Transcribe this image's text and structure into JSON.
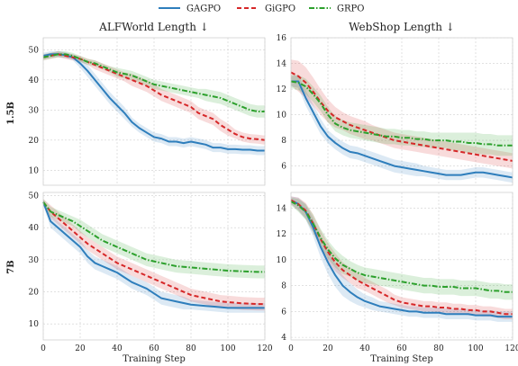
{
  "chart_data": {
    "type": "line",
    "legend": {
      "placement": "top-center",
      "entries": [
        {
          "name": "GAGPO",
          "color": "#2e7ebc",
          "dash": "solid"
        },
        {
          "name": "GiGPO",
          "color": "#d62728",
          "dash": "dashed"
        },
        {
          "name": "GRPO",
          "color": "#2ca02c",
          "dash": "dashdot"
        }
      ]
    },
    "column_titles": [
      "ALFWorld Length ↓",
      "WebShop Length ↓"
    ],
    "row_labels": [
      "1.5B",
      "7B"
    ],
    "xlabel": "Training Step",
    "grid": true,
    "x": [
      0,
      4,
      8,
      12,
      16,
      20,
      24,
      28,
      32,
      36,
      40,
      44,
      48,
      52,
      56,
      60,
      64,
      68,
      72,
      76,
      80,
      84,
      88,
      92,
      96,
      100,
      104,
      108,
      112,
      116,
      120
    ],
    "panels": [
      {
        "row": "1.5B",
        "col": "ALFWorld Length ↓",
        "xlim": [
          0,
          120
        ],
        "ylim": [
          5,
          54
        ],
        "xticks": [],
        "yticks": [
          10,
          20,
          30,
          40,
          50
        ],
        "series": [
          {
            "name": "GAGPO",
            "values": [
              48,
              48.5,
              48.6,
              48.2,
              47.5,
              45.5,
              43,
              40,
              37,
              34,
              31.5,
              29,
              26,
              24,
              22.5,
              21,
              20.5,
              19.5,
              19.5,
              19,
              19.5,
              19,
              18.5,
              17.5,
              17.5,
              17,
              17,
              16.8,
              16.8,
              16.5,
              16.5
            ],
            "band": [
              1,
              1,
              1,
              1,
              1,
              1.5,
              2,
              2,
              2,
              2,
              2,
              2,
              1.5,
              1.5,
              1.5,
              1.5,
              1.5,
              1.5,
              1.5,
              1.5,
              1.5,
              1.5,
              1.5,
              1.5,
              1.5,
              1.5,
              1.5,
              1.5,
              1.5,
              1.5,
              1.5
            ]
          },
          {
            "name": "GiGPO",
            "values": [
              47.5,
              48,
              48.5,
              48,
              47.5,
              47,
              46,
              45,
              44,
              43,
              42,
              41,
              40,
              39,
              38,
              36.5,
              35,
              34,
              33,
              32,
              31,
              29,
              28,
              27,
              25,
              23.5,
              22,
              21,
              20.5,
              20.3,
              20
            ],
            "band": [
              1,
              1,
              1,
              1,
              1,
              1,
              1,
              1.5,
              1.5,
              1.5,
              1.5,
              1.5,
              2,
              2,
              2,
              2,
              2,
              2,
              2,
              2,
              2,
              2,
              2,
              2,
              2,
              2,
              1.5,
              1.5,
              1.5,
              1.5,
              1.5
            ]
          },
          {
            "name": "GRPO",
            "values": [
              47.5,
              48,
              48.5,
              48.5,
              48,
              47,
              46,
              45.5,
              44.5,
              43.5,
              42.5,
              42,
              41.5,
              40.5,
              39.5,
              38.5,
              38,
              37.5,
              37,
              36.5,
              36,
              35.5,
              35,
              34.5,
              34,
              33,
              32,
              31,
              30,
              29.5,
              29.5
            ],
            "band": [
              1,
              1,
              1,
              1,
              1,
              1,
              1,
              1,
              1,
              1,
              1.5,
              1.5,
              1.5,
              1.5,
              1.5,
              1.5,
              1.5,
              1.5,
              1.5,
              1.5,
              1.5,
              1.5,
              2,
              2,
              2,
              2,
              2,
              2,
              2,
              2,
              2
            ]
          }
        ]
      },
      {
        "row": "1.5B",
        "col": "WebShop Length ↓",
        "xlim": [
          0,
          120
        ],
        "ylim": [
          4.5,
          16
        ],
        "xticks": [],
        "yticks": [
          6,
          8,
          10,
          12,
          14,
          16
        ],
        "series": [
          {
            "name": "GAGPO",
            "values": [
              12.6,
              12.6,
              11.3,
              10.2,
              9.1,
              8.3,
              7.8,
              7.4,
              7.1,
              7.0,
              6.8,
              6.6,
              6.4,
              6.2,
              6.0,
              5.9,
              5.8,
              5.7,
              5.6,
              5.5,
              5.4,
              5.3,
              5.3,
              5.3,
              5.4,
              5.5,
              5.5,
              5.4,
              5.3,
              5.2,
              5.1
            ],
            "band": [
              0.4,
              0.5,
              0.6,
              0.6,
              0.6,
              0.5,
              0.5,
              0.5,
              0.5,
              0.5,
              0.5,
              0.5,
              0.5,
              0.5,
              0.5,
              0.5,
              0.5,
              0.5,
              0.4,
              0.4,
              0.4,
              0.4,
              0.4,
              0.4,
              0.4,
              0.4,
              0.4,
              0.4,
              0.4,
              0.4,
              0.4
            ]
          },
          {
            "name": "GiGPO",
            "values": [
              13.3,
              13.0,
              12.5,
              11.8,
              11.0,
              10.3,
              9.8,
              9.5,
              9.2,
              9.0,
              8.8,
              8.6,
              8.4,
              8.2,
              8.0,
              7.9,
              7.8,
              7.7,
              7.6,
              7.5,
              7.4,
              7.3,
              7.2,
              7.1,
              7.0,
              6.9,
              6.8,
              6.7,
              6.6,
              6.5,
              6.4
            ],
            "band": [
              1.0,
              1.2,
              1.2,
              1.1,
              1.0,
              0.9,
              0.8,
              0.7,
              0.7,
              0.7,
              0.7,
              0.6,
              0.6,
              0.6,
              0.6,
              0.6,
              0.6,
              0.6,
              0.6,
              0.6,
              0.6,
              0.6,
              0.6,
              0.6,
              0.6,
              0.6,
              0.6,
              0.6,
              0.6,
              0.6,
              0.6
            ]
          },
          {
            "name": "GRPO",
            "values": [
              12.6,
              12.5,
              12.2,
              11.6,
              10.9,
              10.0,
              9.3,
              9.0,
              8.8,
              8.7,
              8.6,
              8.5,
              8.4,
              8.3,
              8.3,
              8.2,
              8.2,
              8.1,
              8.1,
              8.0,
              8.0,
              8.0,
              7.9,
              7.9,
              7.8,
              7.8,
              7.7,
              7.7,
              7.6,
              7.6,
              7.6
            ],
            "band": [
              0.5,
              0.6,
              0.6,
              0.6,
              0.6,
              0.6,
              0.6,
              0.6,
              0.6,
              0.6,
              0.6,
              0.6,
              0.6,
              0.6,
              0.6,
              0.6,
              0.6,
              0.6,
              0.6,
              0.6,
              0.6,
              0.6,
              0.7,
              0.7,
              0.8,
              0.8,
              0.8,
              0.8,
              0.8,
              0.8,
              0.8
            ]
          }
        ]
      },
      {
        "row": "7B",
        "col": "ALFWorld Length ↓",
        "xlim": [
          0,
          120
        ],
        "ylim": [
          5,
          51
        ],
        "xticks": [
          0,
          20,
          40,
          60,
          80,
          100,
          120
        ],
        "yticks": [
          10,
          20,
          30,
          40,
          50
        ],
        "series": [
          {
            "name": "GAGPO",
            "values": [
              48,
              42,
              40,
              38,
              36,
              34,
              31,
              29,
              28,
              27,
              26,
              24.5,
              23,
              22,
              21,
              19.5,
              18,
              17.5,
              17,
              16.5,
              16,
              15.8,
              15.6,
              15.4,
              15.2,
              15,
              15,
              15,
              15,
              15,
              15
            ],
            "band": [
              1,
              2,
              2,
              2,
              2,
              2,
              2,
              2,
              2,
              2,
              2,
              2,
              2,
              2,
              2,
              2,
              2,
              2,
              2,
              2,
              1.5,
              1.5,
              1.5,
              1.5,
              1.5,
              1.5,
              1.5,
              1.5,
              1.5,
              1.5,
              1.5
            ]
          },
          {
            "name": "GiGPO",
            "values": [
              48,
              45,
              43,
              41,
              39,
              37,
              35,
              33.5,
              32,
              30.5,
              29,
              28,
              27,
              26,
              25,
              24,
              23,
              22,
              21,
              20,
              19,
              18.5,
              18,
              17.5,
              17,
              16.8,
              16.6,
              16.4,
              16.3,
              16.2,
              16.2
            ],
            "band": [
              1,
              2,
              2,
              2,
              2,
              2,
              2,
              2,
              2,
              2,
              2,
              2,
              2,
              2,
              2,
              2,
              2,
              2,
              2,
              2,
              2,
              2,
              2,
              2,
              2,
              2,
              2,
              2,
              2,
              2,
              2
            ]
          },
          {
            "name": "GRPO",
            "values": [
              48,
              45,
              44,
              43,
              42,
              40.5,
              39,
              37.5,
              36,
              35,
              34,
              33,
              32,
              31,
              30,
              29.5,
              29,
              28.5,
              28,
              27.8,
              27.6,
              27.4,
              27.2,
              27,
              26.8,
              26.6,
              26.5,
              26.4,
              26.3,
              26.2,
              26.2
            ],
            "band": [
              1,
              1.5,
              1.5,
              1.5,
              1.5,
              2,
              2,
              2,
              2,
              2,
              2,
              2,
              2,
              2,
              2,
              2,
              2,
              2,
              2,
              2,
              2,
              2,
              2,
              2,
              2,
              2,
              2,
              2,
              2,
              2,
              2
            ]
          }
        ]
      },
      {
        "row": "7B",
        "col": "WebShop Length ↓",
        "xlim": [
          0,
          120
        ],
        "ylim": [
          3.8,
          15.2
        ],
        "xticks": [
          0,
          20,
          40,
          60,
          80,
          100,
          120
        ],
        "yticks": [
          4,
          6,
          8,
          10,
          12,
          14
        ],
        "series": [
          {
            "name": "GAGPO",
            "values": [
              14.6,
              14.3,
              13.7,
              12.5,
              11.0,
              9.8,
              8.8,
              8.0,
              7.5,
              7.1,
              6.8,
              6.6,
              6.4,
              6.3,
              6.2,
              6.1,
              6.0,
              6.0,
              5.9,
              5.9,
              5.9,
              5.8,
              5.8,
              5.8,
              5.8,
              5.7,
              5.7,
              5.7,
              5.6,
              5.6,
              5.6
            ],
            "band": [
              0.3,
              0.5,
              0.6,
              0.7,
              0.8,
              0.9,
              0.9,
              0.8,
              0.7,
              0.6,
              0.5,
              0.5,
              0.4,
              0.4,
              0.4,
              0.4,
              0.4,
              0.4,
              0.4,
              0.4,
              0.4,
              0.4,
              0.4,
              0.4,
              0.4,
              0.4,
              0.4,
              0.4,
              0.4,
              0.4,
              0.4
            ]
          },
          {
            "name": "GiGPO",
            "values": [
              14.6,
              14.3,
              13.8,
              12.8,
              11.6,
              10.6,
              9.8,
              9.2,
              8.8,
              8.4,
              8.1,
              7.8,
              7.5,
              7.2,
              6.9,
              6.7,
              6.6,
              6.5,
              6.4,
              6.4,
              6.3,
              6.3,
              6.2,
              6.2,
              6.1,
              6.1,
              6.0,
              6.0,
              5.9,
              5.8,
              5.8
            ],
            "band": [
              0.3,
              0.5,
              0.6,
              0.7,
              0.7,
              0.7,
              0.7,
              0.6,
              0.6,
              0.6,
              0.5,
              0.5,
              0.5,
              0.5,
              0.4,
              0.4,
              0.4,
              0.4,
              0.4,
              0.4,
              0.4,
              0.4,
              0.4,
              0.4,
              0.4,
              0.4,
              0.4,
              0.4,
              0.4,
              0.4,
              0.4
            ]
          },
          {
            "name": "GRPO",
            "values": [
              14.5,
              14.2,
              13.7,
              12.8,
              11.7,
              10.8,
              10.1,
              9.6,
              9.3,
              9.0,
              8.8,
              8.7,
              8.6,
              8.5,
              8.4,
              8.3,
              8.2,
              8.1,
              8.0,
              8.0,
              7.9,
              7.9,
              7.9,
              7.8,
              7.8,
              7.8,
              7.7,
              7.6,
              7.6,
              7.5,
              7.5
            ],
            "band": [
              0.3,
              0.5,
              0.6,
              0.7,
              0.7,
              0.7,
              0.7,
              0.7,
              0.6,
              0.6,
              0.6,
              0.6,
              0.6,
              0.6,
              0.6,
              0.6,
              0.6,
              0.6,
              0.6,
              0.6,
              0.6,
              0.6,
              0.6,
              0.6,
              0.6,
              0.6,
              0.6,
              0.6,
              0.6,
              0.6,
              0.6
            ]
          }
        ]
      }
    ]
  }
}
